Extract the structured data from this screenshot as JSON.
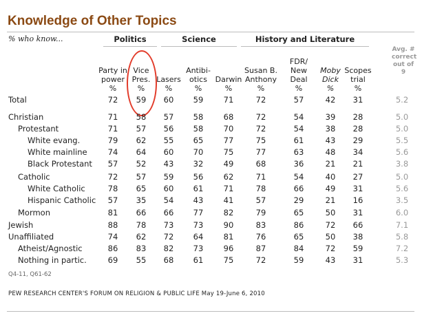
{
  "title": "Knowledge of Other Topics",
  "subtitle": "% who know...",
  "groups": [
    "Politics",
    "Science",
    "History and Literature"
  ],
  "columns": [
    "Party in\npower\n%",
    "Vice\nPres.\n%",
    "Lasers\n%",
    "Antibi-\notics\n%",
    "Darwin\n%",
    "Susan B.\nAnthony\n%",
    "FDR/\nNew Deal\n%",
    "Moby\nDick\n%",
    "Scopes\ntrial\n%"
  ],
  "avg_header": "Avg. #\ncorrect\nout of\n9",
  "rows": [
    {
      "label": "Total",
      "values": [
        "72",
        "59",
        "60",
        "59",
        "71",
        "72",
        "57",
        "42",
        "31",
        "5.2"
      ]
    },
    {
      "label": "Christian",
      "values": [
        "71",
        "58",
        "57",
        "58",
        "68",
        "72",
        "54",
        "39",
        "28",
        "5.0"
      ]
    },
    {
      "label": "Protestant",
      "values": [
        "71",
        "57",
        "56",
        "58",
        "70",
        "72",
        "54",
        "38",
        "28",
        "5.0"
      ]
    },
    {
      "label": "White evang.",
      "values": [
        "79",
        "62",
        "55",
        "65",
        "77",
        "75",
        "61",
        "43",
        "29",
        "5.5"
      ]
    },
    {
      "label": "White mainline",
      "values": [
        "74",
        "64",
        "60",
        "70",
        "75",
        "77",
        "63",
        "48",
        "34",
        "5.6"
      ]
    },
    {
      "label": "Black Protestant",
      "values": [
        "57",
        "52",
        "43",
        "32",
        "49",
        "68",
        "36",
        "21",
        "21",
        "3.8"
      ]
    },
    {
      "label": "Catholic",
      "values": [
        "72",
        "57",
        "59",
        "56",
        "62",
        "71",
        "54",
        "40",
        "27",
        "5.0"
      ]
    },
    {
      "label": "White Catholic",
      "values": [
        "78",
        "65",
        "60",
        "61",
        "71",
        "78",
        "66",
        "49",
        "31",
        "5.6"
      ]
    },
    {
      "label": "Hispanic Catholic",
      "values": [
        "57",
        "35",
        "54",
        "43",
        "41",
        "57",
        "29",
        "21",
        "16",
        "3.5"
      ]
    },
    {
      "label": "Mormon",
      "values": [
        "81",
        "66",
        "66",
        "77",
        "82",
        "79",
        "65",
        "50",
        "31",
        "6.0"
      ]
    },
    {
      "label": "Jewish",
      "values": [
        "88",
        "78",
        "73",
        "73",
        "90",
        "83",
        "86",
        "72",
        "66",
        "7.1"
      ]
    },
    {
      "label": "Unaffiliated",
      "values": [
        "74",
        "62",
        "72",
        "64",
        "81",
        "76",
        "65",
        "50",
        "38",
        "5.8"
      ]
    },
    {
      "label": "Atheist/Agnostic",
      "values": [
        "86",
        "83",
        "82",
        "73",
        "96",
        "87",
        "84",
        "72",
        "59",
        "7.2"
      ]
    },
    {
      "label": "Nothing in partic.",
      "values": [
        "69",
        "55",
        "68",
        "61",
        "75",
        "72",
        "59",
        "43",
        "31",
        "5.3"
      ]
    }
  ],
  "note": "Q4-11, Q61-62",
  "source": "PEW RESEARCH CENTER'S FORUM ON RELIGION & PUBLIC LIFE May 19-June 6, 2010",
  "highlight_color": "#e23b2a"
}
